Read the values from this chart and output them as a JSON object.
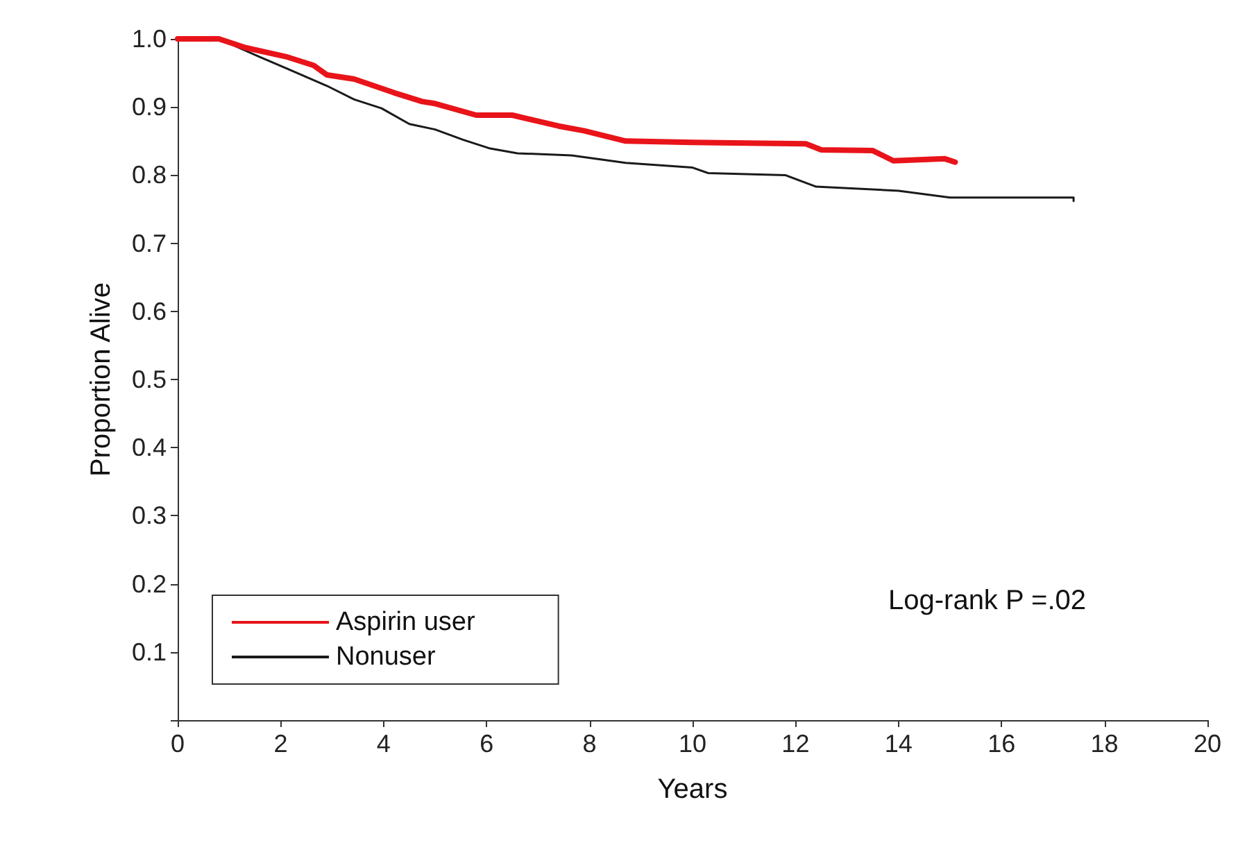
{
  "chart_data": {
    "type": "line",
    "xlabel": "Years",
    "ylabel": "Proportion Alive",
    "xlim": [
      0,
      20
    ],
    "xticks": [
      0,
      2,
      4,
      6,
      8,
      10,
      12,
      14,
      16,
      18,
      20
    ],
    "ylim": [
      0,
      1
    ],
    "yticks": [
      {
        "value": 0,
        "label": null
      },
      0.1,
      0.2,
      0.3,
      0.4,
      0.5,
      0.6,
      0.7,
      0.8,
      0.9,
      {
        "value": 1,
        "label": "1.0"
      }
    ],
    "grid": false,
    "legend": "bottom left",
    "marker": "none",
    "line_style": "solid",
    "annotations": [
      "Log-rank P =.02"
    ],
    "series": [
      {
        "name": "Aspirin user",
        "color": "#e8141a",
        "x": [
          0,
          0.8,
          1.32,
          2.1,
          2.64,
          2.9,
          3.43,
          4.2,
          4.75,
          5.0,
          5.8,
          6.5,
          7.4,
          7.9,
          8.7,
          10.0,
          12.2,
          12.5,
          13.5,
          13.9,
          14.9,
          15.1
        ],
        "values": [
          1,
          1,
          0.987,
          0.974,
          0.961,
          0.947,
          0.941,
          0.921,
          0.908,
          0.905,
          0.888,
          0.888,
          0.872,
          0.865,
          0.85,
          0.848,
          0.846,
          0.837,
          0.836,
          0.821,
          0.824,
          0.819
        ]
      },
      {
        "name": "Nonuser",
        "color": "#1a1a1a",
        "x": [
          0,
          0.8,
          1.58,
          2.1,
          2.9,
          3.43,
          3.96,
          4.5,
          5.0,
          5.54,
          6.07,
          6.6,
          7.65,
          8.7,
          10.0,
          10.3,
          11.8,
          12.4,
          14.0,
          15.0,
          17.4,
          17.4
        ],
        "values": [
          1,
          1,
          0.974,
          0.957,
          0.931,
          0.911,
          0.898,
          0.875,
          0.867,
          0.852,
          0.839,
          0.832,
          0.829,
          0.818,
          0.811,
          0.803,
          0.8,
          0.783,
          0.777,
          0.767,
          0.767,
          0.762
        ]
      }
    ]
  }
}
